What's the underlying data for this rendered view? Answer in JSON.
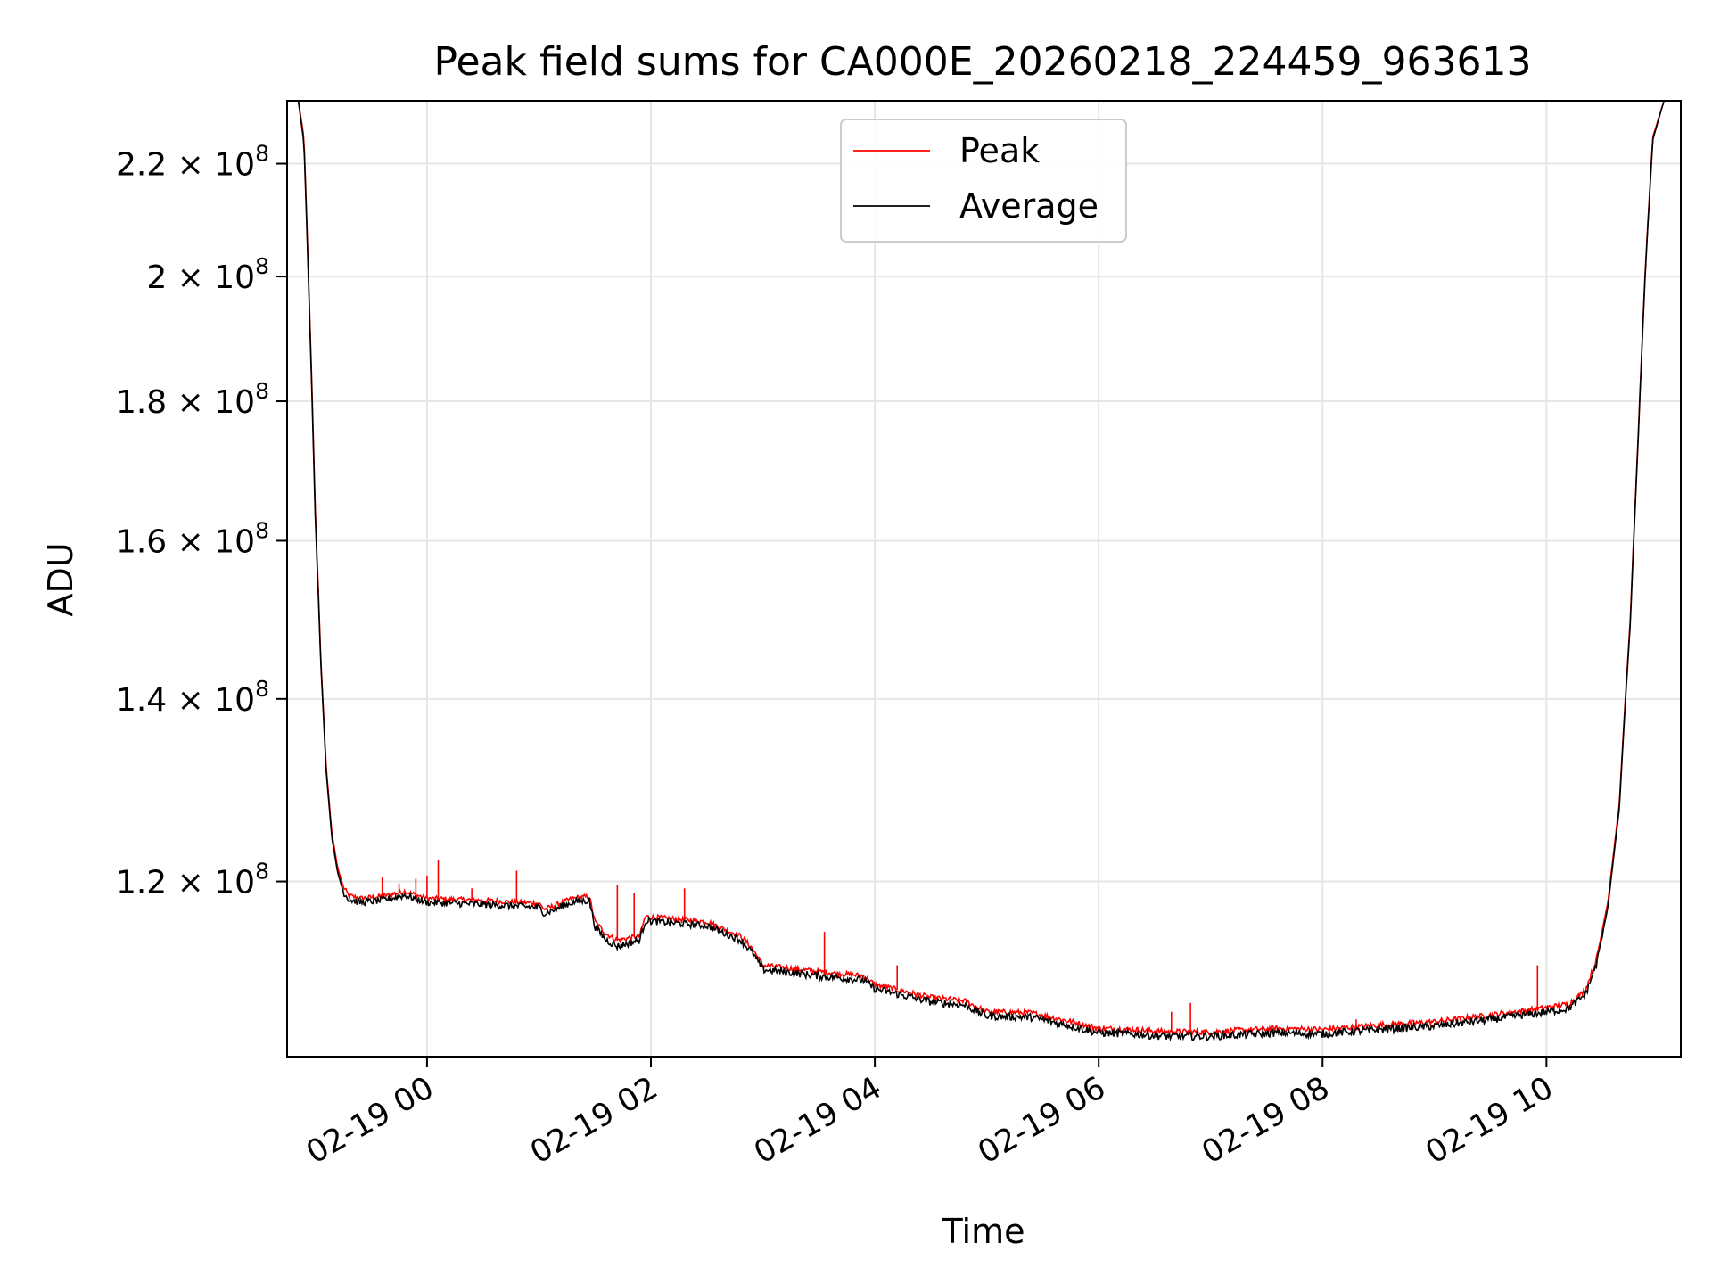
{
  "chart_data": {
    "type": "line",
    "title": "Peak field sums for CA000E_20260218_224459_963613",
    "xlabel": "Time",
    "ylabel": "ADU",
    "y_scale": "log",
    "xlim_hours": [
      -1.25,
      11.2
    ],
    "ylim": [
      103500000,
      232000000
    ],
    "x_ticks": [
      {
        "hour": 0,
        "label": "02-19 00"
      },
      {
        "hour": 2,
        "label": "02-19 02"
      },
      {
        "hour": 4,
        "label": "02-19 04"
      },
      {
        "hour": 6,
        "label": "02-19 06"
      },
      {
        "hour": 8,
        "label": "02-19 08"
      },
      {
        "hour": 10,
        "label": "02-19 10"
      }
    ],
    "y_ticks": [
      {
        "value": 120000000,
        "mantissa": "1.2",
        "base": "10",
        "exp": "8"
      },
      {
        "value": 140000000,
        "mantissa": "1.4",
        "base": "10",
        "exp": "8"
      },
      {
        "value": 160000000,
        "mantissa": "1.6",
        "base": "10",
        "exp": "8"
      },
      {
        "value": 180000000,
        "mantissa": "1.8",
        "base": "10",
        "exp": "8"
      },
      {
        "value": 200000000,
        "mantissa": "2",
        "base": "10",
        "exp": "8"
      },
      {
        "value": 220000000,
        "mantissa": "2.2",
        "base": "10",
        "exp": "8"
      }
    ],
    "grid": true,
    "legend_position": "top-center",
    "series": [
      {
        "name": "Peak",
        "color": "#ff0000",
        "x_hours": [
          -1.22,
          -1.15,
          -1.1,
          -1.05,
          -1.0,
          -0.95,
          -0.9,
          -0.85,
          -0.8,
          -0.75,
          -0.7,
          -0.6,
          -0.4,
          -0.2,
          0.0,
          0.5,
          1.0,
          1.05,
          1.3,
          1.45,
          1.5,
          1.6,
          1.7,
          1.9,
          1.95,
          2.5,
          2.8,
          2.9,
          3.0,
          3.5,
          3.9,
          4.0,
          4.5,
          4.8,
          5.0,
          5.4,
          5.8,
          6.0,
          6.3,
          6.6,
          7.0,
          7.6,
          8.0,
          8.5,
          9.0,
          9.5,
          9.95,
          10.2,
          10.35,
          10.45,
          10.55,
          10.65,
          10.75,
          10.82,
          10.88,
          10.95,
          11.05,
          11.2
        ],
        "y": [
          232000000,
          232000000,
          225000000,
          195000000,
          165000000,
          145000000,
          132000000,
          125000000,
          121500000,
          119500000,
          118600000,
          118300000,
          118500000,
          119000000,
          118300000,
          118100000,
          117800000,
          117200000,
          118300000,
          118500000,
          116000000,
          114800000,
          114200000,
          114600000,
          116500000,
          116000000,
          114600000,
          113500000,
          111800000,
          111200000,
          110800000,
          110000000,
          108800000,
          108500000,
          107500000,
          107400000,
          106500000,
          106000000,
          105900000,
          105700000,
          105700000,
          106000000,
          105900000,
          106300000,
          106600000,
          107200000,
          107800000,
          108200000,
          109500000,
          112500000,
          118000000,
          128000000,
          150000000,
          175000000,
          200000000,
          225000000,
          232000000,
          232000000
        ],
        "spikes": [
          {
            "hour": -0.4,
            "value": 120400000
          },
          {
            "hour": -0.25,
            "value": 119800000
          },
          {
            "hour": -0.1,
            "value": 120300000
          },
          {
            "hour": 0.0,
            "value": 120600000
          },
          {
            "hour": 0.1,
            "value": 122200000
          },
          {
            "hour": 0.4,
            "value": 119300000
          },
          {
            "hour": 0.8,
            "value": 121100000
          },
          {
            "hour": 1.7,
            "value": 119600000
          },
          {
            "hour": 1.85,
            "value": 118800000
          },
          {
            "hour": 2.3,
            "value": 119300000
          },
          {
            "hour": 3.55,
            "value": 115000000
          },
          {
            "hour": 4.2,
            "value": 111800000
          },
          {
            "hour": 6.65,
            "value": 107500000
          },
          {
            "hour": 6.82,
            "value": 108300000
          },
          {
            "hour": 8.3,
            "value": 106800000
          },
          {
            "hour": 9.92,
            "value": 111800000
          }
        ]
      },
      {
        "name": "Average",
        "color": "#000000",
        "x_hours": [
          -1.22,
          -1.15,
          -1.1,
          -1.05,
          -1.0,
          -0.95,
          -0.9,
          -0.85,
          -0.8,
          -0.75,
          -0.7,
          -0.6,
          -0.4,
          -0.2,
          0.0,
          0.5,
          1.0,
          1.05,
          1.3,
          1.45,
          1.5,
          1.6,
          1.7,
          1.9,
          1.95,
          2.5,
          2.8,
          2.9,
          3.0,
          3.5,
          3.9,
          4.0,
          4.5,
          4.8,
          5.0,
          5.4,
          5.8,
          6.0,
          6.3,
          6.6,
          7.0,
          7.6,
          8.0,
          8.5,
          9.0,
          9.5,
          9.95,
          10.2,
          10.35,
          10.45,
          10.55,
          10.65,
          10.75,
          10.82,
          10.88,
          10.95,
          11.05,
          11.2
        ],
        "y": [
          232000000,
          232000000,
          224000000,
          194000000,
          164000000,
          144500000,
          131500000,
          124500000,
          121000000,
          119000000,
          118200000,
          117900000,
          118100000,
          118600000,
          117900000,
          117700000,
          117400000,
          116800000,
          117900000,
          118100000,
          115500000,
          114200000,
          113600000,
          114200000,
          116100000,
          115600000,
          114200000,
          113100000,
          111400000,
          110800000,
          110400000,
          109600000,
          108400000,
          108100000,
          107100000,
          107000000,
          106100000,
          105600000,
          105500000,
          105300000,
          105300000,
          105600000,
          105500000,
          105900000,
          106200000,
          106800000,
          107400000,
          107800000,
          109100000,
          112000000,
          117500000,
          127500000,
          149500000,
          174500000,
          199500000,
          224500000,
          232000000,
          232000000
        ]
      }
    ]
  }
}
